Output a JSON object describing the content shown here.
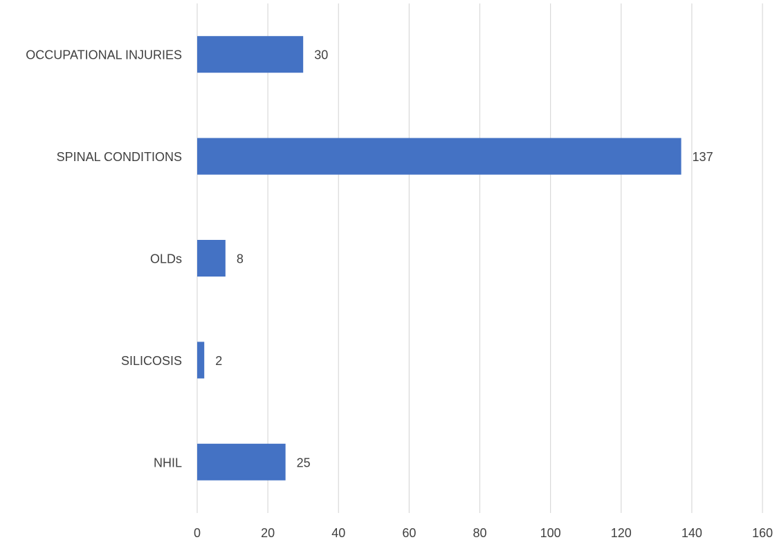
{
  "chart_data": {
    "type": "bar",
    "orientation": "horizontal",
    "categories": [
      "OCCUPATIONAL INJURIES",
      "SPINAL CONDITIONS",
      "OLDs",
      "SILICOSIS",
      "NHIL"
    ],
    "values": [
      30,
      137,
      8,
      2,
      25
    ],
    "data_labels": [
      "30",
      "137",
      "8",
      "2",
      "25"
    ],
    "xlim": [
      0,
      160
    ],
    "xticks": [
      0,
      20,
      40,
      60,
      80,
      100,
      120,
      140,
      160
    ],
    "xtick_labels": [
      "0",
      "20",
      "40",
      "60",
      "80",
      "100",
      "120",
      "140",
      "160"
    ],
    "title": "",
    "xlabel": "",
    "ylabel": "",
    "grid": "vertical",
    "legend": "none",
    "colors": {
      "bar": "#4472C4",
      "grid": "#D9D9D9",
      "text": "#404040"
    }
  }
}
